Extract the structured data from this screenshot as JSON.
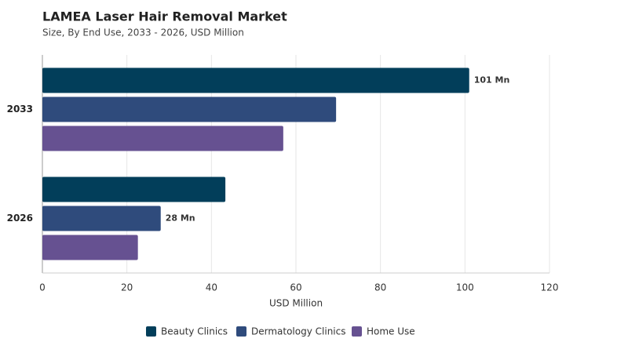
{
  "chart_data": {
    "type": "hbar",
    "title": "LAMEA Laser Hair Removal Market",
    "subtitle": "Size, By End Use, 2033 - 2026, USD Million",
    "categories": [
      "2033",
      "2026"
    ],
    "series": [
      {
        "name": "Beauty Clinics",
        "color": "#023e5a",
        "values": [
          101,
          43.3
        ],
        "value_labels": [
          "101 Mn",
          null
        ]
      },
      {
        "name": "Dermatology Clinics",
        "color": "#2f4b7c",
        "values": [
          69.5,
          28
        ],
        "value_labels": [
          null,
          "28 Mn"
        ]
      },
      {
        "name": "Home Use",
        "color": "#665191",
        "values": [
          57,
          22.6
        ],
        "value_labels": [
          null,
          null
        ]
      }
    ],
    "x_label": "USD Million",
    "xlim": [
      0,
      120
    ],
    "xticks": [
      0,
      20,
      40,
      60,
      80,
      100,
      120
    ],
    "grid": true
  }
}
